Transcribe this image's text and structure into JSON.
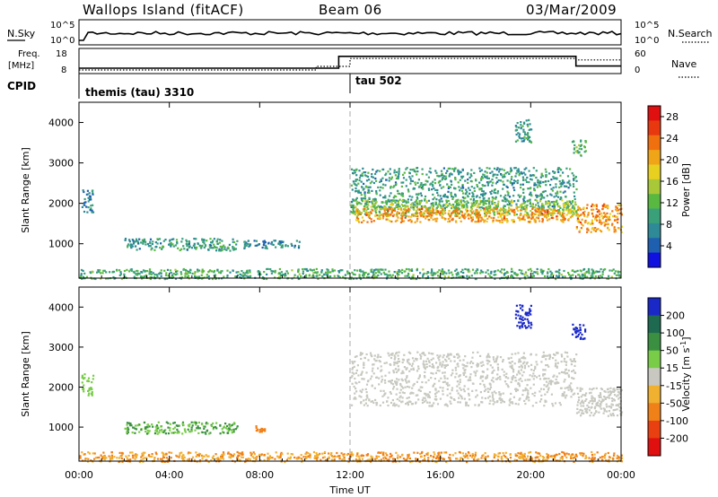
{
  "header": {
    "station": "Wallops Island (fitACF)",
    "beam": "Beam 06",
    "date": "03/Mar/2009"
  },
  "noise_panel": {
    "left_label": "N.Sky",
    "right_label": "N.Search",
    "left_ticks": [
      "10^5",
      "10^0"
    ],
    "right_ticks": [
      "10^5",
      "10^0"
    ]
  },
  "freq_panel": {
    "left_label_line1": "Freq.",
    "left_label_line2": "[MHz]",
    "right_label": "Nave",
    "left_ticks": [
      "18",
      "8"
    ],
    "right_ticks": [
      "60",
      "0"
    ],
    "freq_segments": [
      {
        "from_hour": 0.0,
        "to_hour": 11.5,
        "mhz": 10.5
      },
      {
        "from_hour": 11.5,
        "to_hour": 22.0,
        "mhz": 16.0
      },
      {
        "from_hour": 22.0,
        "to_hour": 24.0,
        "mhz": 11.5
      }
    ],
    "nave_segments": [
      {
        "from_hour": 0.0,
        "to_hour": 10.5,
        "nave": 10
      },
      {
        "from_hour": 10.5,
        "to_hour": 12.0,
        "nave": 20
      },
      {
        "from_hour": 12.0,
        "to_hour": 22.0,
        "nave": 42
      },
      {
        "from_hour": 22.0,
        "to_hour": 24.0,
        "nave": 38
      }
    ]
  },
  "cpid": {
    "label": "CPID",
    "modes": [
      {
        "start_hour": 0.0,
        "text": "themis (tau) 3310"
      },
      {
        "start_hour": 12.0,
        "text": "tau 502"
      }
    ]
  },
  "x_axis": {
    "label": "Time UT",
    "range_hours": [
      0,
      24
    ],
    "ticks": [
      "00:00",
      "04:00",
      "08:00",
      "12:00",
      "16:00",
      "20:00",
      "00:00"
    ]
  },
  "y_axis": {
    "label": "Slant Range [km]",
    "range_km": [
      150,
      4500
    ],
    "ticks": [
      "1000",
      "2000",
      "3000",
      "4000"
    ]
  },
  "power_bar": {
    "label": "Power [dB]",
    "ticks": [
      "4",
      "8",
      "12",
      "16",
      "20",
      "24",
      "28"
    ],
    "colors": [
      "#1010e0",
      "#1e5fb0",
      "#2e8a96",
      "#3aa07a",
      "#58b840",
      "#a8c838",
      "#e8d020",
      "#f0a418",
      "#f07010",
      "#e83810",
      "#e01010"
    ]
  },
  "velocity_bar": {
    "label_main": "Velocity [m s",
    "label_sup": "-1",
    "label_end": "]",
    "ticks": [
      "200",
      "100",
      "50",
      "15",
      "-15",
      "-50",
      "-100",
      "-200"
    ],
    "colors": [
      "#1a28c8",
      "#1e6a50",
      "#3a9040",
      "#78cc48",
      "#c8c8c0",
      "#f0b030",
      "#f08018",
      "#e84010",
      "#e01010"
    ]
  },
  "chart_data": {
    "type": "heatmap",
    "x_unit": "hours UT",
    "y_unit": "km",
    "power_regions": [
      {
        "t": [
          0.1,
          0.6
        ],
        "r": [
          1800,
          2350
        ],
        "db": 6
      },
      {
        "t": [
          2.0,
          7.0
        ],
        "r": [
          850,
          1150
        ],
        "db": 8
      },
      {
        "t": [
          7.2,
          9.8
        ],
        "r": [
          900,
          1100
        ],
        "db": 6
      },
      {
        "t": [
          12.0,
          22.0
        ],
        "r": [
          1900,
          2900
        ],
        "db": 8
      },
      {
        "t": [
          12.0,
          22.0
        ],
        "r": [
          1700,
          2100
        ],
        "db": 14
      },
      {
        "t": [
          12.2,
          21.8
        ],
        "r": [
          1550,
          1900
        ],
        "db": 22
      },
      {
        "t": [
          19.3,
          20.0
        ],
        "r": [
          3500,
          4100
        ],
        "db": 8
      },
      {
        "t": [
          21.8,
          22.4
        ],
        "r": [
          3200,
          3600
        ],
        "db": 12
      },
      {
        "t": [
          22.0,
          24.0
        ],
        "r": [
          1300,
          2000
        ],
        "db": 22
      },
      {
        "t": [
          0.0,
          24.0
        ],
        "r": [
          150,
          400
        ],
        "db": 10
      }
    ],
    "velocity_regions": [
      {
        "t": [
          0.1,
          0.6
        ],
        "r": [
          1800,
          2350
        ],
        "v": 20
      },
      {
        "t": [
          2.0,
          7.0
        ],
        "r": [
          850,
          1150
        ],
        "v": 30
      },
      {
        "t": [
          7.8,
          8.2
        ],
        "r": [
          900,
          1050
        ],
        "v": -60
      },
      {
        "t": [
          12.0,
          22.0
        ],
        "r": [
          1550,
          2900
        ],
        "v": 0
      },
      {
        "t": [
          19.3,
          20.0
        ],
        "r": [
          3500,
          4100
        ],
        "v": 210
      },
      {
        "t": [
          21.8,
          22.4
        ],
        "r": [
          3200,
          3600
        ],
        "v": 210
      },
      {
        "t": [
          22.0,
          24.0
        ],
        "r": [
          1300,
          2000
        ],
        "v": 0
      },
      {
        "t": [
          0.0,
          24.0
        ],
        "r": [
          150,
          400
        ],
        "v": -50
      }
    ]
  }
}
